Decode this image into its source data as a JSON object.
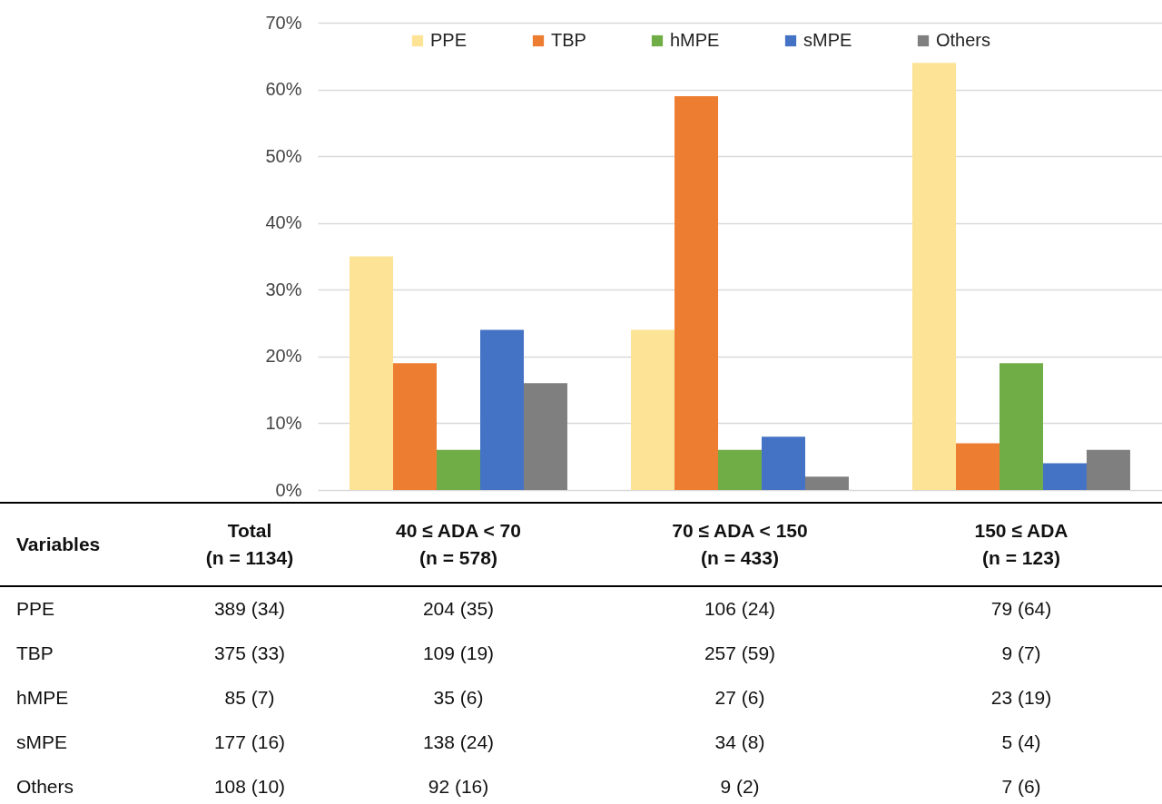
{
  "chart_data": {
    "type": "bar",
    "categories": [
      "40 ≤ ADA < 70\n(n = 578)",
      "70 ≤ ADA < 150\n(n = 433)",
      "150 ≤ ADA\n(n = 123)"
    ],
    "series": [
      {
        "name": "PPE",
        "color": "#fde396",
        "values": [
          35,
          24,
          64
        ],
        "value_labels": [
          "204 (35)",
          "106 (24)",
          "79 (64)"
        ]
      },
      {
        "name": "TBP",
        "color": "#ed7d31",
        "values": [
          19,
          59,
          7
        ],
        "value_labels": [
          "109 (19)",
          "257 (59)",
          "9 (7)"
        ]
      },
      {
        "name": "hMPE",
        "color": "#70ad47",
        "values": [
          6,
          6,
          19
        ],
        "value_labels": [
          "35 (6)",
          "27 (6)",
          "23 (19)"
        ]
      },
      {
        "name": "sMPE",
        "color": "#4472c4",
        "values": [
          24,
          8,
          4
        ],
        "value_labels": [
          "138 (24)",
          "34 (8)",
          "5 (4)"
        ]
      },
      {
        "name": "Others",
        "color": "#7f7f7f",
        "values": [
          16,
          2,
          6
        ],
        "value_labels": [
          "92 (16)",
          "9 (2)",
          "7 (6)"
        ]
      }
    ],
    "ylim": [
      0,
      70
    ],
    "yticks": [
      {
        "value": 0,
        "label": "0%"
      },
      {
        "value": 10,
        "label": "10%"
      },
      {
        "value": 20,
        "label": "20%"
      },
      {
        "value": 30,
        "label": "30%"
      },
      {
        "value": 40,
        "label": "40%"
      },
      {
        "value": 50,
        "label": "50%"
      },
      {
        "value": 60,
        "label": "60%"
      },
      {
        "value": 70,
        "label": "70%"
      }
    ],
    "grid": "y",
    "legend": "top",
    "annotations": [
      "Variables",
      "Total\n(n = 1134)",
      "389 (34)",
      "375 (33)",
      "85 (7)",
      "177 (16)",
      "108 (10)"
    ]
  }
}
